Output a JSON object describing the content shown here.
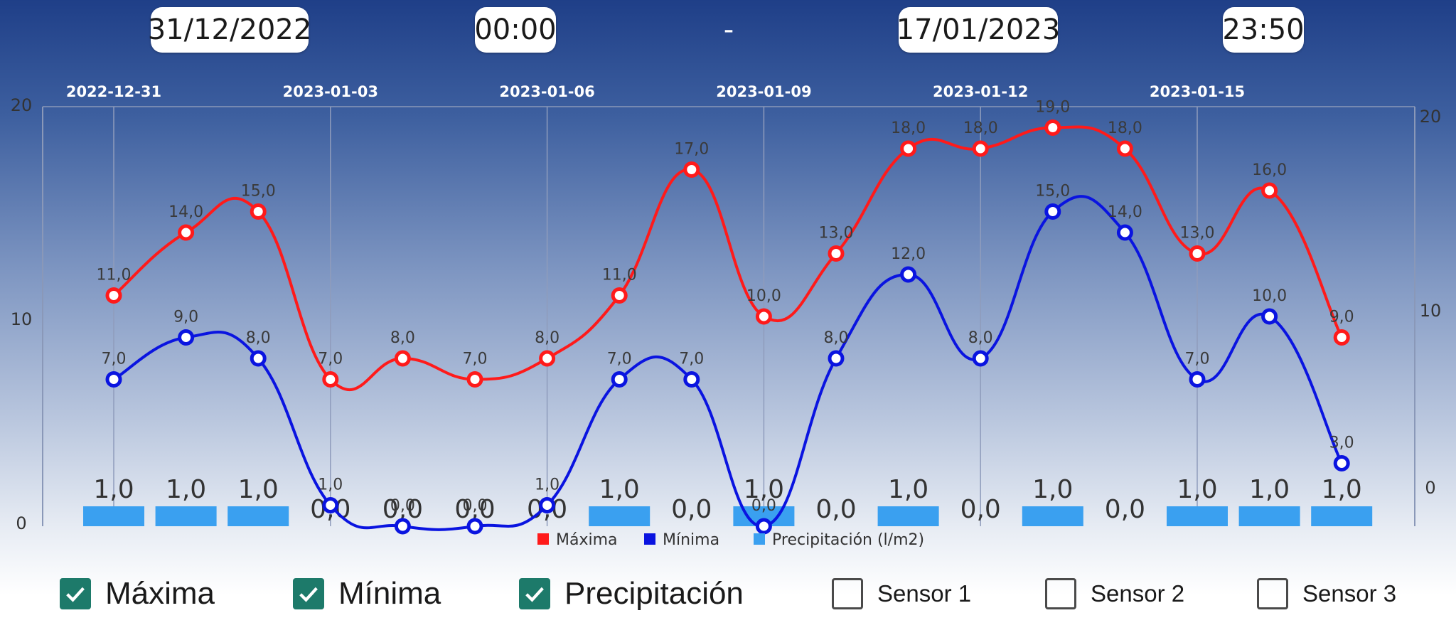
{
  "header": {
    "start_date": "31/12/2022",
    "start_time": "00:00",
    "separator": "-",
    "end_date": "17/01/2023",
    "end_time": "23:50"
  },
  "chart_data": {
    "type": "line",
    "x": [
      "2022-12-31",
      "2023-01-01",
      "2023-01-02",
      "2023-01-03",
      "2023-01-04",
      "2023-01-05",
      "2023-01-06",
      "2023-01-07",
      "2023-01-08",
      "2023-01-09",
      "2023-01-10",
      "2023-01-11",
      "2023-01-12",
      "2023-01-13",
      "2023-01-14",
      "2023-01-15",
      "2023-01-16",
      "2023-01-17"
    ],
    "x_ticks": [
      "2022-12-31",
      "2023-01-03",
      "2023-01-06",
      "2023-01-09",
      "2023-01-12",
      "2023-01-15"
    ],
    "series": [
      {
        "name": "Máxima",
        "type": "line",
        "axis": "left",
        "color": "#ff1a1a",
        "values": [
          11.0,
          14.0,
          15.0,
          7.0,
          8.0,
          7.0,
          8.0,
          11.0,
          17.0,
          10.0,
          13.0,
          18.0,
          18.0,
          19.0,
          18.0,
          13.0,
          16.0,
          9.0
        ],
        "labels": [
          "11,0",
          "14,0",
          "15,0",
          "7,0",
          "8,0",
          "7,0",
          "8,0",
          "11,0",
          "17,0",
          "10,0",
          "13,0",
          "18,0",
          "18,0",
          "19,0",
          "18,0",
          "13,0",
          "16,0",
          "9,0"
        ]
      },
      {
        "name": "Mínima",
        "type": "line",
        "axis": "left",
        "color": "#0a14e0",
        "values": [
          7.0,
          9.0,
          8.0,
          1.0,
          0.0,
          0.0,
          1.0,
          7.0,
          7.0,
          0.0,
          8.0,
          12.0,
          8.0,
          15.0,
          14.0,
          7.0,
          10.0,
          3.0
        ],
        "labels": [
          "7,0",
          "9,0",
          "8,0",
          "1,0",
          "0,0",
          "0,0",
          "1,0",
          "7,0",
          "7,0",
          "0,0",
          "8,0",
          "12,0",
          "8,0",
          "15,0",
          "14,0",
          "7,0",
          "10,0",
          "3,0"
        ]
      },
      {
        "name": "Precipitación (l/m2)",
        "type": "bar",
        "axis": "right",
        "color": "#3aa0f0",
        "values": [
          1.0,
          1.0,
          1.0,
          0.0,
          0.0,
          0.0,
          0.0,
          1.0,
          0.0,
          1.0,
          0.0,
          1.0,
          0.0,
          1.0,
          0.0,
          1.0,
          1.0,
          1.0
        ],
        "labels": [
          "1,0",
          "1,0",
          "1,0",
          "0,0",
          "0,0",
          "0,0",
          "0,0",
          "1,0",
          "0,0",
          "1,0",
          "0,0",
          "1,0",
          "0,0",
          "1,0",
          "0,0",
          "1,0",
          "1,0",
          "1,0"
        ]
      }
    ],
    "y_left": {
      "ticks": [
        "0",
        "10",
        "20"
      ]
    },
    "y_right": {
      "ticks": [
        "0",
        "10",
        "20"
      ]
    },
    "legend_position": "bottom-center",
    "grid": "vertical"
  },
  "toggles": [
    {
      "label": "Máxima",
      "checked": true
    },
    {
      "label": "Mínima",
      "checked": true
    },
    {
      "label": "Precipitación",
      "checked": true
    },
    {
      "label": "Sensor 1",
      "checked": false
    },
    {
      "label": "Sensor 2",
      "checked": false
    },
    {
      "label": "Sensor 3",
      "checked": false
    }
  ]
}
